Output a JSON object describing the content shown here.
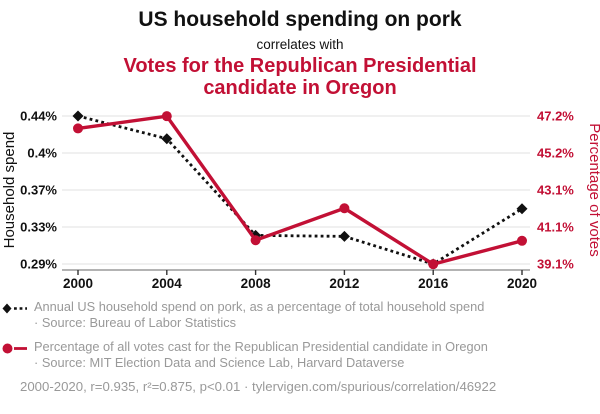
{
  "header": {
    "title": "US household spending on pork",
    "subtitle": "correlates with",
    "title_secondary": "Votes for the Republican Presidential candidate in Oregon",
    "accent_color": "#c21035"
  },
  "chart_data": {
    "type": "line",
    "title": "US household spending on pork correlates with Votes for the Republican Presidential candidate in Oregon",
    "x": [
      2000,
      2004,
      2008,
      2012,
      2016,
      2020
    ],
    "series": [
      {
        "name": "Annual US household spend on pork, as a percentage of total household spend",
        "axis": "left",
        "color": "#111111",
        "style": "dashed",
        "marker": "diamond",
        "values": [
          0.44,
          0.417,
          0.319,
          0.318,
          0.29,
          0.346
        ]
      },
      {
        "name": "Percentage of all votes cast for the Republican Presidential candidate in Oregon",
        "axis": "right",
        "color": "#c21035",
        "style": "solid",
        "marker": "circle",
        "values": [
          46.52,
          47.19,
          40.4,
          42.15,
          39.09,
          40.37
        ]
      }
    ],
    "left_axis": {
      "label": "Household spend",
      "tick_labels": [
        "0.44%",
        "0.4%",
        "0.37%",
        "0.33%",
        "0.29%"
      ],
      "range": [
        0.29,
        0.44
      ]
    },
    "right_axis": {
      "label": "Percentage of votes",
      "tick_labels": [
        "47.2%",
        "45.2%",
        "43.1%",
        "41.1%",
        "39.1%"
      ],
      "range": [
        39.1,
        47.2
      ]
    },
    "grid": true,
    "legend_position": "bottom"
  },
  "legend": {
    "items": [
      {
        "label": "Annual US household spend on pork, as a percentage of total household spend",
        "source": "· Source: Bureau of Labor Statistics"
      },
      {
        "label": "Percentage of all votes cast for the Republican Presidential candidate in Oregon",
        "source": "· Source: MIT Election Data and Science Lab, Harvard Dataverse"
      }
    ]
  },
  "footer": {
    "text": "2000-2020, r=0.935, r²=0.875, p<0.01 · tylervigen.com/spurious/correlation/46922"
  }
}
